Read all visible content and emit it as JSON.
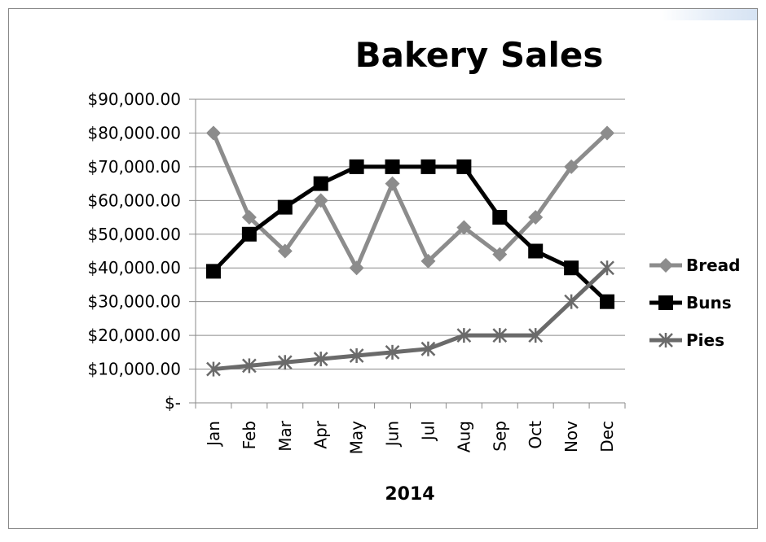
{
  "chart_data": {
    "type": "line",
    "title": "Bakery Sales",
    "xlabel": "2014",
    "ylabel": "",
    "categories": [
      "Jan",
      "Feb",
      "Mar",
      "Apr",
      "May",
      "Jun",
      "Jul",
      "Aug",
      "Sep",
      "Oct",
      "Nov",
      "Dec"
    ],
    "ylim": [
      0,
      90000
    ],
    "y_ticks": [
      {
        "value": 90000,
        "label": "$90,000.00"
      },
      {
        "value": 80000,
        "label": "$80,000.00"
      },
      {
        "value": 70000,
        "label": "$70,000.00"
      },
      {
        "value": 60000,
        "label": "$60,000.00"
      },
      {
        "value": 50000,
        "label": "$50,000.00"
      },
      {
        "value": 40000,
        "label": "$40,000.00"
      },
      {
        "value": 30000,
        "label": "$30,000.00"
      },
      {
        "value": 20000,
        "label": "$20,000.00"
      },
      {
        "value": 10000,
        "label": "$10,000.00"
      },
      {
        "value": 0,
        "label": "$-"
      }
    ],
    "grid": true,
    "legend_position": "right",
    "series": [
      {
        "name": "Bread",
        "marker": "diamond",
        "color": "#8c8c8c",
        "values": [
          80000,
          55000,
          45000,
          60000,
          40000,
          65000,
          42000,
          52000,
          44000,
          55000,
          70000,
          80000
        ]
      },
      {
        "name": "Buns",
        "marker": "square",
        "color": "#000000",
        "values": [
          39000,
          50000,
          58000,
          65000,
          70000,
          70000,
          70000,
          70000,
          55000,
          45000,
          40000,
          30000
        ]
      },
      {
        "name": "Pies",
        "marker": "star",
        "color": "#6a6a6a",
        "values": [
          10000,
          11000,
          12000,
          13000,
          14000,
          15000,
          16000,
          20000,
          20000,
          20000,
          30000,
          40000
        ]
      }
    ]
  }
}
